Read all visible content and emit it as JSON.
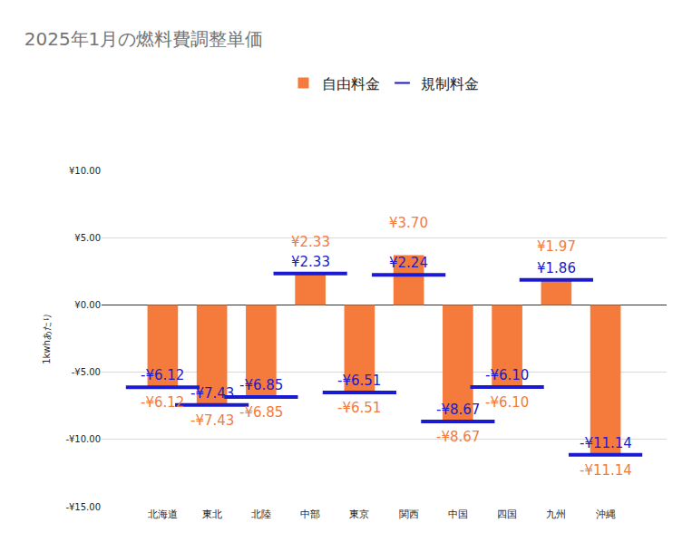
{
  "chart_data": {
    "type": "bar",
    "title": "2025年1月の燃料費調整単価",
    "y_label": "1kwhあたり",
    "categories": [
      "北海道",
      "東北",
      "北陸",
      "中部",
      "東京",
      "関西",
      "中国",
      "四国",
      "九州",
      "沖縄"
    ],
    "series": [
      {
        "name": "自由料金",
        "type": "bar",
        "color": "#f47b3b",
        "values": [
          -6.12,
          -7.43,
          -6.85,
          2.33,
          -6.51,
          3.7,
          -8.67,
          -6.1,
          1.97,
          -11.14
        ],
        "value_labels": [
          "-¥6.12",
          "-¥7.43",
          "-¥6.85",
          "¥2.33",
          "-¥6.51",
          "¥3.70",
          "-¥8.67",
          "-¥6.10",
          "¥1.97",
          "-¥11.14"
        ]
      },
      {
        "name": "規制料金",
        "type": "scatter",
        "marker": "line-ew",
        "color": "#1a1ad0",
        "values": [
          -6.12,
          -7.43,
          -6.85,
          2.33,
          -6.51,
          2.24,
          -8.67,
          -6.1,
          1.86,
          -11.14
        ],
        "value_labels": [
          "-¥6.12",
          "-¥7.43",
          "-¥6.85",
          "¥2.33",
          "-¥6.51",
          "¥2.24",
          "-¥8.67",
          "-¥6.10",
          "¥1.86",
          "-¥11.14"
        ]
      }
    ],
    "ylim": [
      -15,
      10
    ],
    "yticks": [
      {
        "value": -15,
        "label": "-¥15.00"
      },
      {
        "value": -10,
        "label": "-¥10.00"
      },
      {
        "value": -5,
        "label": "-¥5.00"
      },
      {
        "value": 0,
        "label": "¥0.00"
      },
      {
        "value": 5,
        "label": "¥5.00"
      },
      {
        "value": 10,
        "label": "¥10.00"
      }
    ],
    "grid": true,
    "legend": "top",
    "data_labels": true
  }
}
